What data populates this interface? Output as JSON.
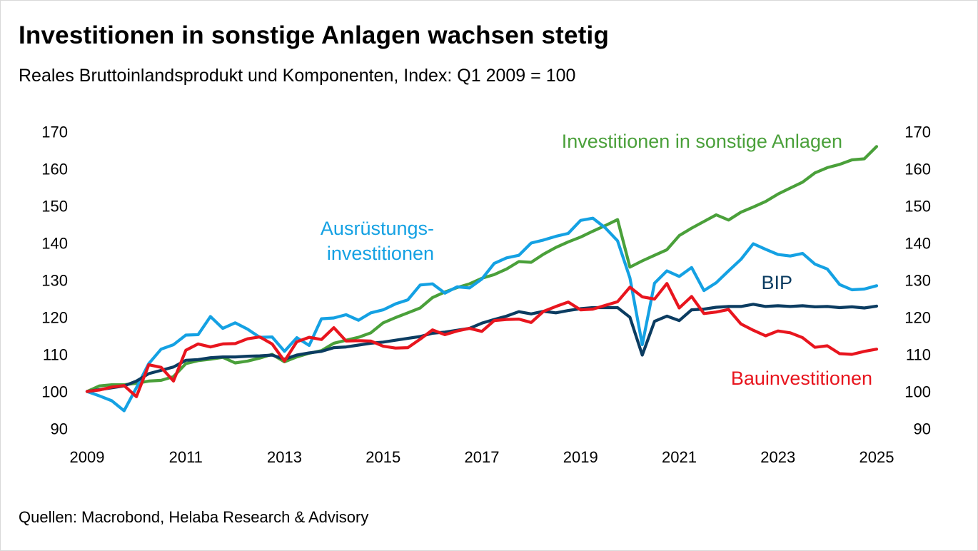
{
  "title": "Investitionen in sonstige Anlagen wachsen stetig",
  "subtitle": "Reales Bruttoinlandsprodukt und Komponenten, Index: Q1 2009 = 100",
  "source": "Quellen: Macrobond, Helaba Research & Advisory",
  "chart_data": {
    "type": "line",
    "title": "Investitionen in sonstige Anlagen wachsen stetig",
    "subtitle": "Reales Bruttoinlandsprodukt und Komponenten, Index: Q1 2009 = 100",
    "xlabel": "",
    "ylabel": "",
    "xlim": [
      2009.0,
      2025.25
    ],
    "ylim": [
      88,
      172
    ],
    "x_ticks": [
      2009,
      2011,
      2013,
      2015,
      2017,
      2019,
      2021,
      2023,
      2025
    ],
    "x_tick_labels": [
      "2009",
      "2011",
      "2013",
      "2015",
      "2017",
      "2019",
      "2021",
      "2023",
      "2025"
    ],
    "y_ticks": [
      90,
      100,
      110,
      120,
      130,
      140,
      150,
      160,
      170
    ],
    "y_tick_labels": [
      "90",
      "100",
      "110",
      "120",
      "130",
      "140",
      "150",
      "160",
      "170"
    ],
    "dual_y_axis_labels": true,
    "grid": false,
    "x_start": 2009.0,
    "x_step": 0.25,
    "series": [
      {
        "name": "Investitionen in sonstige Anlagen",
        "label_lines": [
          "Investitionen in sonstige Anlagen"
        ],
        "color": "#4aa03a",
        "values": [
          100,
          101.5,
          101.8,
          101.8,
          102.2,
          102.8,
          103.0,
          104.0,
          107.5,
          108.3,
          108.7,
          109.2,
          107.7,
          108.2,
          109.0,
          110.0,
          108.0,
          109.3,
          110.3,
          111.0,
          113.0,
          113.8,
          114.6,
          115.8,
          118.5,
          119.9,
          121.2,
          122.5,
          125.3,
          126.8,
          128.0,
          129.0,
          130.5,
          131.5,
          133.0,
          135.0,
          134.8,
          137.0,
          138.8,
          140.3,
          141.6,
          143.2,
          144.7,
          146.3,
          133.5,
          135.2,
          136.7,
          138.2,
          142.0,
          144.0,
          145.8,
          147.6,
          146.2,
          148.3,
          149.7,
          151.2,
          153.2,
          154.8,
          156.4,
          158.9,
          160.3,
          161.2,
          162.4,
          162.7,
          166.0
        ]
      },
      {
        "name": "Ausrüstungsinvestitionen",
        "label_lines": [
          "Ausrüstungs-",
          "investitionen"
        ],
        "color": "#14a1e3",
        "values": [
          100,
          98.8,
          97.5,
          94.8,
          101.0,
          107.5,
          111.4,
          112.6,
          115.2,
          115.3,
          120.2,
          117.0,
          118.5,
          116.8,
          114.6,
          114.7,
          110.8,
          114.5,
          112.4,
          119.6,
          119.8,
          120.7,
          119.2,
          121.2,
          122.0,
          123.6,
          124.7,
          128.7,
          129.0,
          126.5,
          128.2,
          127.9,
          130.3,
          134.5,
          136.0,
          136.7,
          140.0,
          140.8,
          141.8,
          142.6,
          146.1,
          146.7,
          144.1,
          140.6,
          130.6,
          112.6,
          129.2,
          132.5,
          131.0,
          133.4,
          127.2,
          129.3,
          132.5,
          135.6,
          139.8,
          138.3,
          136.9,
          136.5,
          137.2,
          134.3,
          133.0,
          128.8,
          127.4,
          127.6,
          128.5
        ]
      },
      {
        "name": "BIP",
        "label_lines": [
          "BIP"
        ],
        "color": "#0b3c61",
        "values": [
          100,
          100.5,
          101.0,
          101.5,
          102.8,
          104.8,
          105.7,
          106.6,
          108.4,
          108.6,
          109.1,
          109.3,
          109.3,
          109.5,
          109.6,
          109.8,
          108.7,
          109.8,
          110.4,
          110.8,
          111.8,
          112.0,
          112.5,
          113.0,
          113.3,
          113.8,
          114.3,
          114.8,
          115.7,
          116.0,
          116.5,
          117.0,
          118.4,
          119.4,
          120.3,
          121.5,
          120.9,
          121.6,
          121.2,
          121.8,
          122.3,
          122.6,
          122.6,
          122.6,
          120.0,
          109.8,
          118.9,
          120.3,
          119.1,
          122.0,
          122.2,
          122.7,
          122.9,
          122.9,
          123.5,
          122.9,
          123.1,
          122.9,
          123.1,
          122.8,
          122.9,
          122.6,
          122.8,
          122.5,
          123.0
        ]
      },
      {
        "name": "Bauinvestitionen",
        "label_lines": [
          "Bauinvestitionen"
        ],
        "color": "#e8151e",
        "values": [
          100,
          100.4,
          101.2,
          101.6,
          98.6,
          107.2,
          106.5,
          102.8,
          111.1,
          112.8,
          112.0,
          112.8,
          112.9,
          114.2,
          114.7,
          112.8,
          108.2,
          113.4,
          114.6,
          114.0,
          117.2,
          113.6,
          113.7,
          113.6,
          112.2,
          111.7,
          111.8,
          114.1,
          116.6,
          115.3,
          116.3,
          117.0,
          116.2,
          119.1,
          119.4,
          119.5,
          118.6,
          121.6,
          122.9,
          124.1,
          122.0,
          122.2,
          123.2,
          124.2,
          128.1,
          125.5,
          124.9,
          129.1,
          122.5,
          125.6,
          121.0,
          121.4,
          122.1,
          118.2,
          116.5,
          115.0,
          116.3,
          115.8,
          114.5,
          111.9,
          112.3,
          110.2,
          110.0,
          110.8,
          111.4
        ]
      }
    ]
  }
}
